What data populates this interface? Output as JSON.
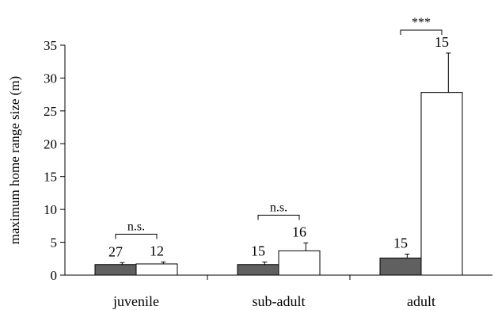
{
  "chart_data": {
    "type": "bar",
    "categories": [
      "juvenile",
      "sub-adult",
      "adult"
    ],
    "series": [
      {
        "color": "#606060",
        "values": [
          1.6,
          1.6,
          2.6
        ],
        "errors": [
          0.3,
          0.4,
          0.6
        ],
        "n": [
          "27",
          "15",
          "15"
        ]
      },
      {
        "color": "#ffffff",
        "values": [
          1.7,
          3.7,
          27.8
        ],
        "errors": [
          0.3,
          1.2,
          6.0
        ],
        "n": [
          "12",
          "16",
          "15"
        ]
      }
    ],
    "significance": [
      "n.s.",
      "n.s.",
      "***"
    ],
    "xlabel": "",
    "ylabel": "maximum home range size (m)",
    "ylim": [
      0,
      35
    ],
    "yticks": [
      0,
      5,
      10,
      15,
      20,
      25,
      30,
      35
    ],
    "grid": false,
    "legend": "none"
  }
}
